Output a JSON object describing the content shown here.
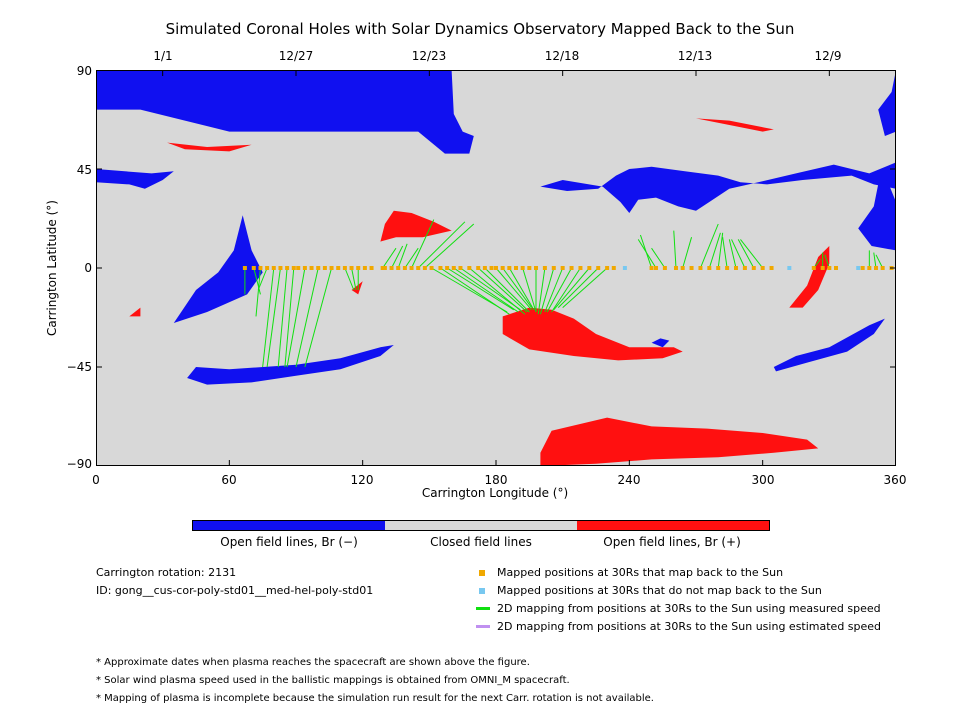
{
  "chart_data": {
    "type": "map",
    "title": "Simulated Coronal Holes with Solar Dynamics Observatory Mapped Back to the Sun",
    "xlabel": "Carrington Longitude (°)",
    "ylabel": "Carrington Latitude (°)",
    "xlim": [
      0,
      360
    ],
    "ylim": [
      -90,
      90
    ],
    "x_ticks": [
      0,
      60,
      120,
      180,
      240,
      300,
      360
    ],
    "y_ticks": [
      90,
      45,
      0,
      -45,
      -90
    ],
    "top_date_ticks": [
      {
        "label": "1/1",
        "lon": 30
      },
      {
        "label": "12/27",
        "lon": 90
      },
      {
        "label": "12/23",
        "lon": 150
      },
      {
        "label": "12/18",
        "lon": 210
      },
      {
        "label": "12/13",
        "lon": 270
      },
      {
        "label": "12/9",
        "lon": 330
      }
    ],
    "colors": {
      "background": "#d8d8d8",
      "open_negative": "#1010f0",
      "open_positive": "#ff1010",
      "mapped": "#f0a800",
      "not_mapped": "#78c8f0",
      "measured_line": "#10e010",
      "estimated_line": "#c090f0"
    },
    "regions_negative": [
      [
        [
          0,
          90
        ],
        [
          160,
          90
        ],
        [
          161,
          70
        ],
        [
          165,
          62
        ],
        [
          170,
          60
        ],
        [
          168,
          52
        ],
        [
          157,
          52
        ],
        [
          145,
          62
        ],
        [
          60,
          62
        ],
        [
          20,
          72
        ],
        [
          0,
          72
        ]
      ],
      [
        [
          0,
          45
        ],
        [
          25,
          43
        ],
        [
          35,
          44
        ],
        [
          30,
          40
        ],
        [
          22,
          36
        ],
        [
          15,
          38
        ],
        [
          0,
          39
        ]
      ],
      [
        [
          240,
          45
        ],
        [
          250,
          46
        ],
        [
          265,
          44
        ],
        [
          280,
          42
        ],
        [
          290,
          39
        ],
        [
          302,
          38
        ],
        [
          318,
          40
        ],
        [
          340,
          42
        ],
        [
          350,
          38
        ],
        [
          360,
          36
        ],
        [
          360,
          48
        ],
        [
          348,
          43
        ],
        [
          332,
          47
        ],
        [
          315,
          43
        ],
        [
          298,
          39
        ],
        [
          285,
          36
        ],
        [
          276,
          30
        ],
        [
          270,
          26
        ],
        [
          262,
          28
        ],
        [
          252,
          32
        ],
        [
          244,
          31
        ],
        [
          240,
          25
        ],
        [
          236,
          30
        ],
        [
          228,
          37
        ],
        [
          210,
          40
        ],
        [
          200,
          37
        ],
        [
          212,
          35
        ],
        [
          226,
          36
        ],
        [
          234,
          42
        ]
      ],
      [
        [
          343,
          18
        ],
        [
          349,
          10
        ],
        [
          360,
          8
        ],
        [
          360,
          30
        ],
        [
          356,
          40
        ],
        [
          352,
          38
        ],
        [
          350,
          28
        ]
      ],
      [
        [
          45,
          -45
        ],
        [
          60,
          -46
        ],
        [
          90,
          -44
        ],
        [
          110,
          -41
        ],
        [
          128,
          -36
        ],
        [
          134,
          -35
        ],
        [
          128,
          -40
        ],
        [
          110,
          -46
        ],
        [
          90,
          -49
        ],
        [
          70,
          -52
        ],
        [
          50,
          -53
        ],
        [
          41,
          -50
        ]
      ],
      [
        [
          35,
          -25
        ],
        [
          50,
          -20
        ],
        [
          68,
          -12
        ],
        [
          75,
          -2
        ],
        [
          70,
          8
        ],
        [
          68,
          16
        ],
        [
          66,
          24
        ],
        [
          62,
          8
        ],
        [
          55,
          -2
        ],
        [
          45,
          -10
        ]
      ],
      [
        [
          305,
          -45
        ],
        [
          315,
          -40
        ],
        [
          330,
          -36
        ],
        [
          348,
          -26
        ],
        [
          355,
          -23
        ],
        [
          350,
          -30
        ],
        [
          338,
          -38
        ],
        [
          320,
          -43
        ],
        [
          306,
          -47
        ]
      ],
      [
        [
          250,
          -34
        ],
        [
          254,
          -32
        ],
        [
          258,
          -33
        ],
        [
          255,
          -36
        ]
      ],
      [
        [
          355,
          60
        ],
        [
          360,
          62
        ],
        [
          360,
          90
        ],
        [
          358,
          80
        ],
        [
          352,
          72
        ]
      ]
    ],
    "regions_positive": [
      [
        [
          130,
          20
        ],
        [
          134,
          26
        ],
        [
          142,
          25
        ],
        [
          152,
          21
        ],
        [
          160,
          17
        ],
        [
          147,
          14
        ],
        [
          135,
          14
        ],
        [
          128,
          12
        ]
      ],
      [
        [
          183,
          -22
        ],
        [
          195,
          -18
        ],
        [
          205,
          -19
        ],
        [
          215,
          -23
        ],
        [
          225,
          -30
        ],
        [
          240,
          -36
        ],
        [
          260,
          -36
        ],
        [
          264,
          -38
        ],
        [
          255,
          -41
        ],
        [
          235,
          -42
        ],
        [
          215,
          -40
        ],
        [
          195,
          -37
        ],
        [
          183,
          -30
        ]
      ],
      [
        [
          205,
          -74
        ],
        [
          230,
          -68
        ],
        [
          250,
          -72
        ],
        [
          275,
          -73
        ],
        [
          300,
          -75
        ],
        [
          320,
          -78
        ],
        [
          325,
          -82
        ],
        [
          305,
          -84
        ],
        [
          280,
          -86
        ],
        [
          250,
          -87
        ],
        [
          225,
          -89
        ],
        [
          200,
          -90
        ],
        [
          200,
          -84
        ]
      ],
      [
        [
          312,
          -18
        ],
        [
          320,
          -8
        ],
        [
          325,
          5
        ],
        [
          330,
          10
        ],
        [
          330,
          2
        ],
        [
          325,
          -10
        ],
        [
          318,
          -18
        ]
      ],
      [
        [
          32,
          57
        ],
        [
          50,
          55
        ],
        [
          70,
          56
        ],
        [
          60,
          53
        ],
        [
          40,
          54
        ]
      ],
      [
        [
          270,
          68
        ],
        [
          300,
          62
        ],
        [
          305,
          63
        ],
        [
          285,
          67
        ]
      ],
      [
        [
          15,
          -22
        ],
        [
          20,
          -18
        ],
        [
          20,
          -22
        ]
      ],
      [
        [
          115,
          -10
        ],
        [
          120,
          -6
        ],
        [
          118,
          -12
        ]
      ]
    ],
    "mapped_points_lon": [
      67,
      71,
      74,
      77,
      80,
      83,
      86,
      89,
      91,
      94,
      97,
      100,
      103,
      106,
      109,
      112,
      115,
      118,
      121,
      124,
      129,
      130,
      133,
      136,
      139,
      142,
      145,
      148,
      151,
      155,
      158,
      161,
      164,
      168,
      172,
      175,
      178,
      180,
      183,
      186,
      189,
      192,
      195,
      198,
      202,
      206,
      210,
      214,
      218,
      222,
      226,
      230,
      233,
      250,
      252,
      256,
      261,
      264,
      268,
      272,
      276,
      280,
      284,
      288,
      292,
      296,
      300,
      304,
      323,
      327,
      330,
      333,
      345,
      348,
      351,
      354,
      358
    ],
    "unmapped_points_lon": [
      238,
      312,
      343
    ],
    "measured_lines": [
      [
        67,
        0,
        67,
        -12
      ],
      [
        71,
        0,
        74,
        -12
      ],
      [
        74,
        0,
        72,
        -22
      ],
      [
        77,
        0,
        73,
        -10
      ],
      [
        80,
        0,
        75,
        -45
      ],
      [
        83,
        0,
        77,
        -45
      ],
      [
        86,
        0,
        82,
        -45
      ],
      [
        89,
        0,
        85,
        -45
      ],
      [
        94,
        0,
        86,
        -45
      ],
      [
        100,
        0,
        90,
        -45
      ],
      [
        106,
        0,
        94,
        -45
      ],
      [
        112,
        0,
        116,
        -10
      ],
      [
        115,
        0,
        117,
        -10
      ],
      [
        118,
        0,
        118,
        -10
      ],
      [
        129,
        0,
        135,
        9
      ],
      [
        133,
        0,
        138,
        10
      ],
      [
        136,
        0,
        140,
        11
      ],
      [
        139,
        0,
        145,
        9
      ],
      [
        142,
        0,
        152,
        22
      ],
      [
        145,
        0,
        166,
        21
      ],
      [
        148,
        0,
        170,
        20
      ],
      [
        151,
        0,
        185,
        -20
      ],
      [
        155,
        0,
        186,
        -21
      ],
      [
        158,
        0,
        188,
        -19
      ],
      [
        161,
        0,
        190,
        -20
      ],
      [
        164,
        0,
        191,
        -19
      ],
      [
        168,
        0,
        193,
        -21
      ],
      [
        172,
        0,
        194,
        -20
      ],
      [
        175,
        0,
        195,
        -20
      ],
      [
        180,
        0,
        196,
        -19
      ],
      [
        183,
        0,
        196,
        -18
      ],
      [
        186,
        0,
        197,
        -19
      ],
      [
        192,
        0,
        198,
        -20
      ],
      [
        198,
        0,
        198,
        -20
      ],
      [
        202,
        0,
        199,
        -21
      ],
      [
        206,
        0,
        200,
        -21
      ],
      [
        210,
        0,
        202,
        -20
      ],
      [
        214,
        0,
        203,
        -20
      ],
      [
        218,
        0,
        205,
        -20
      ],
      [
        222,
        0,
        206,
        -19
      ],
      [
        226,
        0,
        208,
        -18
      ],
      [
        230,
        0,
        210,
        -18
      ],
      [
        250,
        0,
        245,
        15
      ],
      [
        252,
        0,
        244,
        13
      ],
      [
        256,
        0,
        250,
        9
      ],
      [
        261,
        0,
        260,
        17
      ],
      [
        264,
        0,
        268,
        14
      ],
      [
        272,
        0,
        280,
        20
      ],
      [
        276,
        0,
        281,
        16
      ],
      [
        280,
        0,
        282,
        16
      ],
      [
        284,
        0,
        282,
        14
      ],
      [
        288,
        0,
        285,
        13
      ],
      [
        292,
        0,
        286,
        13
      ],
      [
        296,
        0,
        289,
        13
      ],
      [
        300,
        0,
        290,
        13
      ],
      [
        323,
        0,
        326,
        4
      ],
      [
        327,
        0,
        327,
        7
      ],
      [
        330,
        0,
        328,
        6
      ],
      [
        348,
        0,
        348,
        8
      ],
      [
        351,
        0,
        350,
        7
      ],
      [
        354,
        0,
        351,
        6
      ]
    ]
  },
  "top_dates": [
    "1/1",
    "12/27",
    "12/23",
    "12/18",
    "12/13",
    "12/9"
  ],
  "x_tick_labels": [
    "0",
    "60",
    "120",
    "180",
    "240",
    "300",
    "360"
  ],
  "y_tick_labels": [
    "90",
    "45",
    "0",
    "−45",
    "−90"
  ],
  "colorbar": {
    "labels": [
      "Open field lines, Br (−)",
      "Closed field lines",
      "Open field lines, Br (+)"
    ]
  },
  "info": {
    "rotation": "Carrington rotation: 2131",
    "id": "ID: gong__cus-cor-poly-std01__med-hel-poly-std01"
  },
  "legend": [
    "Mapped positions at 30Rs that map back to the Sun",
    "Mapped positions at 30Rs that do not map back to the Sun",
    "2D mapping from positions at 30Rs to the Sun using measured speed",
    "2D mapping from positions at 30Rs to the Sun using estimated speed"
  ],
  "notes": [
    "* Approximate dates when plasma reaches the spacecraft are shown above the figure.",
    "* Solar wind plasma speed used in the ballistic mappings is obtained from OMNI_M spacecraft.",
    "* Mapping of plasma is incomplete because the simulation run result for the next Carr. rotation is not available."
  ]
}
